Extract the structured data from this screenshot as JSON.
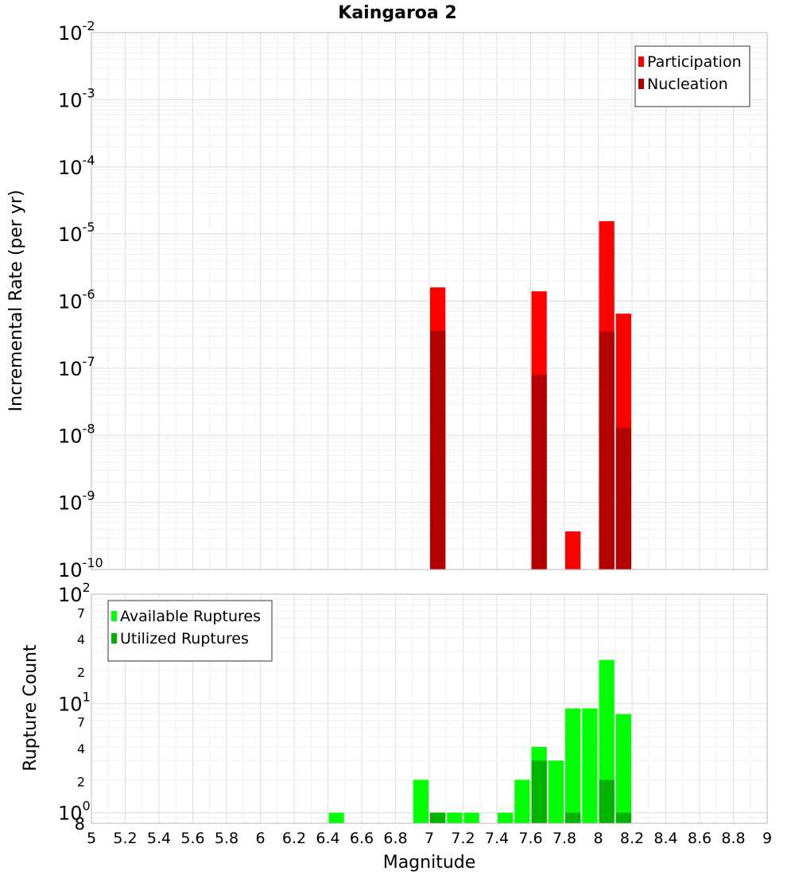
{
  "chart_data": [
    {
      "type": "bar",
      "title": "Kaingaroa 2",
      "xlabel": "",
      "ylabel": "Incremental Rate (per yr)",
      "y_scale": "log",
      "ylim": [
        1e-10,
        0.01
      ],
      "xlim": [
        5,
        9
      ],
      "y_tick_exponents": [
        "-10",
        "-9",
        "-8",
        "-7",
        "-6",
        "-5",
        "-4",
        "-3",
        "-2"
      ],
      "y_tick_base": "10",
      "legend_position": "top-right",
      "series": [
        {
          "name": "Participation",
          "color": "#ff0000",
          "points": [
            {
              "x": 7.05,
              "y": 1.6e-06
            },
            {
              "x": 7.65,
              "y": 1.4e-06
            },
            {
              "x": 7.85,
              "y": 3.7e-10
            },
            {
              "x": 8.05,
              "y": 1.55e-05
            },
            {
              "x": 8.15,
              "y": 6.5e-07
            }
          ]
        },
        {
          "name": "Nucleation",
          "color": "#b30000",
          "points": [
            {
              "x": 7.05,
              "y": 3.6e-07
            },
            {
              "x": 7.65,
              "y": 8e-08
            },
            {
              "x": 8.05,
              "y": 3.5e-07
            },
            {
              "x": 8.15,
              "y": 1.3e-08
            }
          ]
        }
      ]
    },
    {
      "type": "bar",
      "title": "",
      "xlabel": "Magnitude",
      "ylabel": "Rupture Count",
      "y_scale": "log",
      "ylim": [
        0.8,
        100
      ],
      "xlim": [
        5,
        9
      ],
      "x_ticks": [
        "5",
        "5.2",
        "5.4",
        "5.6",
        "5.8",
        "6",
        "6.2",
        "6.4",
        "6.6",
        "6.8",
        "7",
        "7.2",
        "7.4",
        "7.6",
        "7.8",
        "8",
        "8.2",
        "8.4",
        "8.6",
        "8.8",
        "9"
      ],
      "y_tick_labels": [
        {
          "value": 100,
          "base": "10",
          "exp": "2"
        },
        {
          "value": 70,
          "label": "7"
        },
        {
          "value": 40,
          "label": "4"
        },
        {
          "value": 20,
          "label": "2"
        },
        {
          "value": 10,
          "base": "10",
          "exp": "1"
        },
        {
          "value": 7,
          "label": "7"
        },
        {
          "value": 4,
          "label": "4"
        },
        {
          "value": 2,
          "label": "2"
        },
        {
          "value": 1,
          "base": "10",
          "exp": "0"
        },
        {
          "value": 0.8,
          "label": "8"
        }
      ],
      "legend_position": "top-left",
      "series": [
        {
          "name": "Available Ruptures",
          "color": "#00ff00",
          "points": [
            {
              "x": 6.45,
              "y": 1
            },
            {
              "x": 6.95,
              "y": 2
            },
            {
              "x": 7.05,
              "y": 1
            },
            {
              "x": 7.15,
              "y": 1
            },
            {
              "x": 7.25,
              "y": 1
            },
            {
              "x": 7.45,
              "y": 1
            },
            {
              "x": 7.55,
              "y": 2
            },
            {
              "x": 7.65,
              "y": 4
            },
            {
              "x": 7.75,
              "y": 3
            },
            {
              "x": 7.85,
              "y": 9
            },
            {
              "x": 7.95,
              "y": 9
            },
            {
              "x": 8.05,
              "y": 25
            },
            {
              "x": 8.15,
              "y": 8
            }
          ]
        },
        {
          "name": "Utilized Ruptures",
          "color": "#00b300",
          "points": [
            {
              "x": 7.05,
              "y": 1
            },
            {
              "x": 7.65,
              "y": 3
            },
            {
              "x": 7.85,
              "y": 1
            },
            {
              "x": 8.05,
              "y": 2
            },
            {
              "x": 8.15,
              "y": 1
            }
          ]
        }
      ]
    }
  ]
}
